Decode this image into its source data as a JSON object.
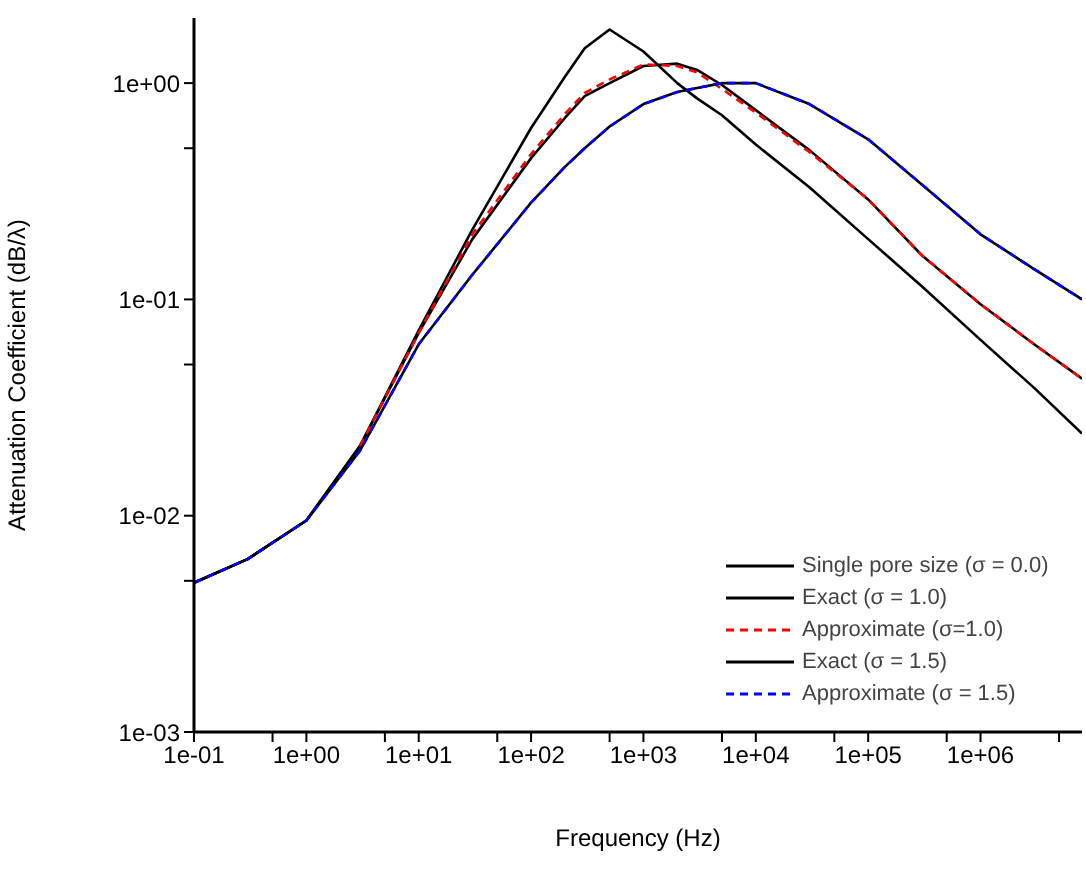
{
  "chart_data": {
    "type": "line",
    "xlabel": "Frequency (Hz)",
    "ylabel": "Attenuation Coefficient (dB/λ)",
    "log": "xy",
    "legend": "bottom right",
    "marker": "none",
    "xlim": [
      0.1,
      8000000
    ],
    "ylim": [
      0.001,
      2
    ],
    "xticks": [
      {
        "value": 0.1,
        "label": "1e-01"
      },
      {
        "value": 0.5,
        "label": null
      },
      {
        "value": 1,
        "label": "1e+00"
      },
      {
        "value": 5,
        "label": null
      },
      {
        "value": 10,
        "label": "1e+01"
      },
      {
        "value": 50,
        "label": null
      },
      {
        "value": 100,
        "label": "1e+02"
      },
      {
        "value": 500,
        "label": null
      },
      {
        "value": 1000,
        "label": "1e+03"
      },
      {
        "value": 5000,
        "label": null
      },
      {
        "value": 10000,
        "label": "1e+04"
      },
      {
        "value": 50000,
        "label": null
      },
      {
        "value": 100000,
        "label": "1e+05"
      },
      {
        "value": 500000,
        "label": null
      },
      {
        "value": 1000000,
        "label": "1e+06"
      },
      {
        "value": 5000000,
        "label": null
      }
    ],
    "yticks": [
      {
        "value": 0.001,
        "label": "1e-03"
      },
      {
        "value": 0.005,
        "label": null
      },
      {
        "value": 0.01,
        "label": "1e-02"
      },
      {
        "value": 0.05,
        "label": null
      },
      {
        "value": 0.1,
        "label": "1e-01"
      },
      {
        "value": 0.5,
        "label": null
      },
      {
        "value": 1,
        "label": "1e+00"
      }
    ],
    "x": [
      0.1,
      0.3,
      1,
      3,
      10,
      30,
      100,
      200,
      300,
      500,
      1000,
      2000,
      3000,
      5000,
      10000,
      30000,
      100000,
      300000,
      1000000,
      3000000,
      8000000
    ],
    "series": [
      {
        "name": "Single pore size (σ = 0.0)",
        "color": "#000000",
        "line_style": "solid",
        "values": [
          0.0049,
          0.0063,
          0.0095,
          0.021,
          0.072,
          0.21,
          0.62,
          1.07,
          1.45,
          1.77,
          1.4,
          1.0,
          0.85,
          0.71,
          0.52,
          0.33,
          0.19,
          0.115,
          0.065,
          0.039,
          0.024
        ]
      },
      {
        "name": "Exact  (σ = 1.0)",
        "color": "#000000",
        "line_style": "solid",
        "values": [
          0.0049,
          0.0063,
          0.0095,
          0.021,
          0.07,
          0.19,
          0.45,
          0.69,
          0.87,
          1.0,
          1.2,
          1.23,
          1.15,
          0.98,
          0.75,
          0.49,
          0.29,
          0.16,
          0.095,
          0.062,
          0.043
        ]
      },
      {
        "name": "Approximate (σ=1.0)",
        "color": "#ff0000",
        "line_style": "dashed",
        "values": [
          null,
          null,
          null,
          0.021,
          0.07,
          0.2,
          0.47,
          0.72,
          0.9,
          1.04,
          1.22,
          1.2,
          1.12,
          0.94,
          0.73,
          0.48,
          0.29,
          0.16,
          0.095,
          0.062,
          0.043
        ]
      },
      {
        "name": "Exact (σ = 1.5)",
        "color": "#000000",
        "line_style": "solid",
        "values": [
          0.0049,
          0.0063,
          0.0095,
          0.02,
          0.062,
          0.13,
          0.28,
          0.41,
          0.5,
          0.63,
          0.8,
          0.91,
          0.95,
          1.0,
          1.0,
          0.8,
          0.55,
          0.34,
          0.2,
          0.138,
          0.1
        ]
      },
      {
        "name": "Approximate  (σ = 1.5)",
        "color": "#0000ff",
        "line_style": "dashed",
        "values": [
          0.0049,
          0.0063,
          0.0095,
          0.02,
          0.062,
          0.13,
          0.28,
          0.41,
          0.5,
          0.63,
          0.8,
          0.91,
          0.95,
          1.0,
          1.0,
          0.8,
          0.55,
          0.34,
          0.2,
          0.138,
          0.1
        ]
      }
    ]
  }
}
